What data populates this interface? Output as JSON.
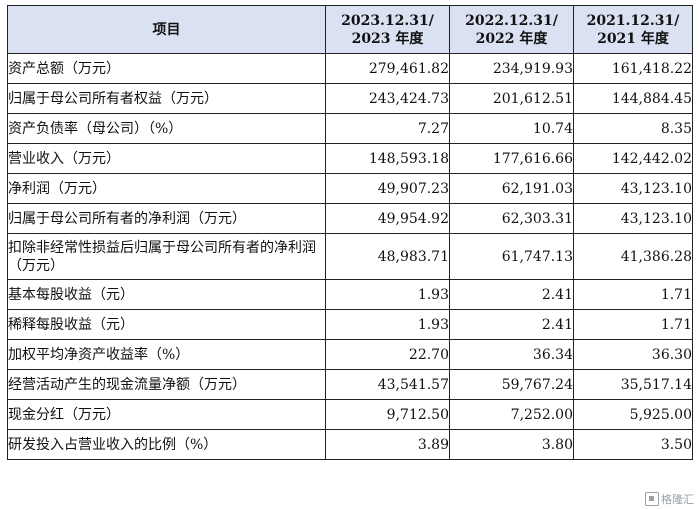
{
  "table": {
    "header": {
      "item": "项目",
      "col1_line1": "2023.12.31/",
      "col1_line2": "2023 年度",
      "col2_line1": "2022.12.31/",
      "col2_line2": "2022 年度",
      "col3_line1": "2021.12.31/",
      "col3_line2": "2021 年度"
    },
    "rows": [
      {
        "label": "资产总额（万元）",
        "v2023": "279,461.82",
        "v2022": "234,919.93",
        "v2021": "161,418.22"
      },
      {
        "label": "归属于母公司所有者权益（万元）",
        "v2023": "243,424.73",
        "v2022": "201,612.51",
        "v2021": "144,884.45"
      },
      {
        "label": "资产负债率（母公司）（%）",
        "v2023": "7.27",
        "v2022": "10.74",
        "v2021": "8.35"
      },
      {
        "label": "营业收入（万元）",
        "v2023": "148,593.18",
        "v2022": "177,616.66",
        "v2021": "142,442.02"
      },
      {
        "label": "净利润（万元）",
        "v2023": "49,907.23",
        "v2022": "62,191.03",
        "v2021": "43,123.10"
      },
      {
        "label": "归属于母公司所有者的净利润（万元）",
        "v2023": "49,954.92",
        "v2022": "62,303.31",
        "v2021": "43,123.10"
      },
      {
        "label": "扣除非经常性损益后归属于母公司所有者的净利润（万元）",
        "v2023": "48,983.71",
        "v2022": "61,747.13",
        "v2021": "41,386.28"
      },
      {
        "label": "基本每股收益（元）",
        "v2023": "1.93",
        "v2022": "2.41",
        "v2021": "1.71"
      },
      {
        "label": "稀释每股收益（元）",
        "v2023": "1.93",
        "v2022": "2.41",
        "v2021": "1.71"
      },
      {
        "label": "加权平均净资产收益率（%）",
        "v2023": "22.70",
        "v2022": "36.34",
        "v2021": "36.30"
      },
      {
        "label": "经营活动产生的现金流量净额（万元）",
        "v2023": "43,541.57",
        "v2022": "59,767.24",
        "v2021": "35,517.14"
      },
      {
        "label": "现金分红（万元）",
        "v2023": "9,712.50",
        "v2022": "7,252.00",
        "v2021": "5,925.00"
      },
      {
        "label": "研发投入占营业收入的比例（%）",
        "v2023": "3.89",
        "v2022": "3.80",
        "v2021": "3.50"
      }
    ]
  },
  "watermark": {
    "text": "格隆汇",
    "icon": "logo-icon"
  },
  "colors": {
    "header_bg": "#d9e1f2",
    "border": "#222222",
    "text": "#111111"
  }
}
